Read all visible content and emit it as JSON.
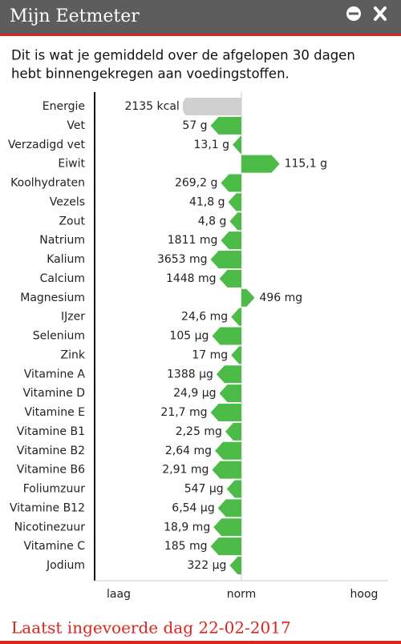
{
  "header": {
    "title": "Mijn Eetmeter"
  },
  "intro": [
    "Dit is wat je gemiddeld over de afgelopen 30 dagen",
    "hebt binnengekregen aan voedingstoffen."
  ],
  "chart": {
    "level_range": [
      -100,
      100
    ],
    "axis_labels": [
      "laag",
      "norm",
      "hoog"
    ],
    "rows": [
      {
        "name": "Energie",
        "amount": "2135 kcal",
        "level": -40,
        "color": "#d0d0d0"
      },
      {
        "name": "Vet",
        "amount": "57 g",
        "level": -21,
        "color": "#4cbb47"
      },
      {
        "name": "Verzadigd vet",
        "amount": "13,1 g",
        "level": -6,
        "color": "#4cbb47"
      },
      {
        "name": "Eiwit",
        "amount": "115,1 g",
        "level": 26,
        "color": "#4cbb47"
      },
      {
        "name": "Koolhydraten",
        "amount": "269,2 g",
        "level": -14,
        "color": "#4cbb47"
      },
      {
        "name": "Vezels",
        "amount": "41,8 g",
        "level": -9,
        "color": "#4cbb47"
      },
      {
        "name": "Zout",
        "amount": "4,8 g",
        "level": -8,
        "color": "#4cbb47"
      },
      {
        "name": "Natrium",
        "amount": "1811 mg",
        "level": -14,
        "color": "#4cbb47"
      },
      {
        "name": "Kalium",
        "amount": "3653 mg",
        "level": -21,
        "color": "#4cbb47"
      },
      {
        "name": "Calcium",
        "amount": "1448 mg",
        "level": -15,
        "color": "#4cbb47"
      },
      {
        "name": "Magnesium",
        "amount": "496 mg",
        "level": 9,
        "color": "#4cbb47"
      },
      {
        "name": "IJzer",
        "amount": "24,6 mg",
        "level": -7,
        "color": "#4cbb47"
      },
      {
        "name": "Selenium",
        "amount": "105 µg",
        "level": -20,
        "color": "#4cbb47"
      },
      {
        "name": "Zink",
        "amount": "17 mg",
        "level": -7,
        "color": "#4cbb47"
      },
      {
        "name": "Vitamine A",
        "amount": "1388 µg",
        "level": -17,
        "color": "#4cbb47"
      },
      {
        "name": "Vitamine D",
        "amount": "24,9 µg",
        "level": -15,
        "color": "#4cbb47"
      },
      {
        "name": "Vitamine E",
        "amount": "21,7 mg",
        "level": -21,
        "color": "#4cbb47"
      },
      {
        "name": "Vitamine B1",
        "amount": "2,25 mg",
        "level": -11,
        "color": "#4cbb47"
      },
      {
        "name": "Vitamine B2",
        "amount": "2,64 mg",
        "level": -18,
        "color": "#4cbb47"
      },
      {
        "name": "Vitamine B6",
        "amount": "2,91 mg",
        "level": -20,
        "color": "#4cbb47"
      },
      {
        "name": "Foliumzuur",
        "amount": "547 µg",
        "level": -10,
        "color": "#4cbb47"
      },
      {
        "name": "Vitamine B12",
        "amount": "6,54 µg",
        "level": -16,
        "color": "#4cbb47"
      },
      {
        "name": "Nicotinezuur",
        "amount": "18,9 mg",
        "level": -19,
        "color": "#4cbb47"
      },
      {
        "name": "Vitamine C",
        "amount": "185 mg",
        "level": -21,
        "color": "#4cbb47"
      },
      {
        "name": "Jodium",
        "amount": "322 µg",
        "level": -8,
        "color": "#4cbb47"
      }
    ]
  },
  "footer": {
    "text": "Laatst ingevoerde dag 22-02-2017"
  }
}
